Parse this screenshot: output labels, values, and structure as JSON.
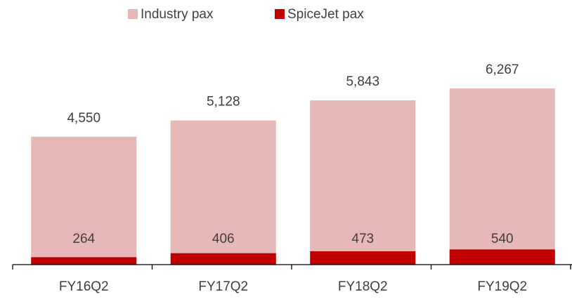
{
  "chart_data": {
    "type": "bar",
    "categories": [
      "FY16Q2",
      "FY17Q2",
      "FY18Q2",
      "FY19Q2"
    ],
    "series": [
      {
        "name": "Industry pax",
        "color": "#e6b8b7",
        "values": [
          4550,
          5128,
          5843,
          6267
        ],
        "value_labels": [
          "4,550",
          "5,128",
          "5,843",
          "6,267"
        ]
      },
      {
        "name": "SpiceJet pax",
        "color": "#c00000",
        "values": [
          264,
          406,
          473,
          540
        ]
      }
    ],
    "legend": "top"
  }
}
